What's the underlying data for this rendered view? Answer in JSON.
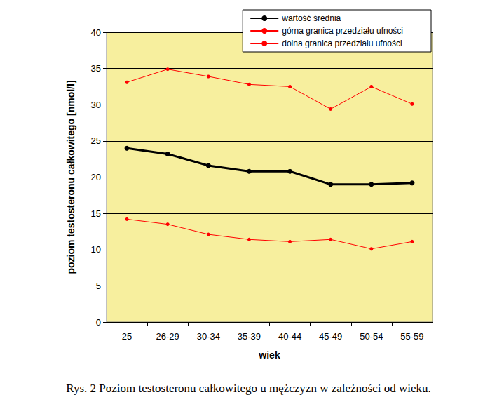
{
  "chart_data": {
    "type": "line",
    "title": "Rys. 2 Poziom testosteronu całkowitego u mężczyzn w zależności od wieku.",
    "x_label": "wiek",
    "y_label": "poziom testosteronu całkowitego [nmol/l]",
    "categories": [
      "25",
      "26-29",
      "30-34",
      "35-39",
      "40-44",
      "45-49",
      "50-54",
      "55-59"
    ],
    "series": [
      {
        "name": "wartość średnia",
        "color": "#000000",
        "marker": "circle",
        "line_style": "solid",
        "values": [
          24.0,
          23.2,
          21.6,
          20.8,
          20.8,
          19.0,
          19.0,
          19.2
        ]
      },
      {
        "name": "górna granica przedziału ufności",
        "color": "#ff0000",
        "marker": "circle",
        "line_style": "solid",
        "values": [
          33.1,
          34.9,
          33.9,
          32.8,
          32.5,
          29.4,
          32.5,
          30.1
        ]
      },
      {
        "name": "dolna granica przedziału ufności",
        "color": "#ff0000",
        "marker": "circle",
        "line_style": "solid",
        "values": [
          14.2,
          13.5,
          12.1,
          11.4,
          11.1,
          11.4,
          10.1,
          11.1
        ]
      }
    ],
    "ylim": [
      0,
      40
    ],
    "yticks": [
      0,
      5,
      10,
      15,
      20,
      25,
      30,
      35,
      40
    ],
    "grid": true,
    "legend": "upper right"
  }
}
